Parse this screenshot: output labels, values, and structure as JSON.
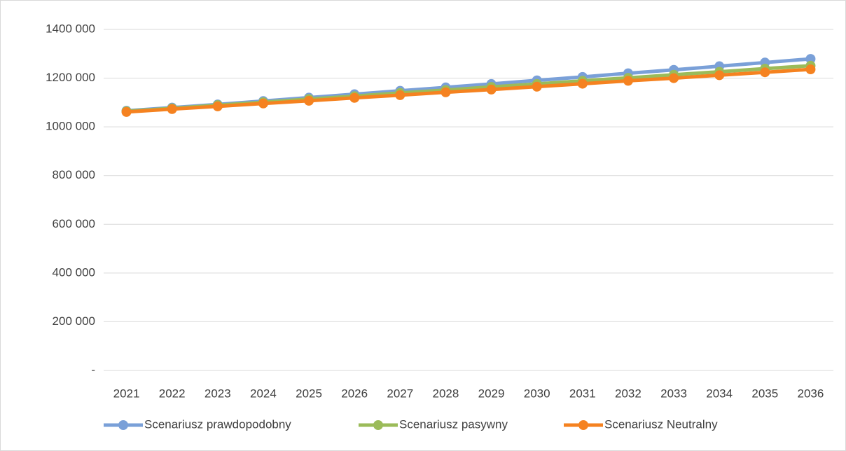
{
  "chart_data": {
    "type": "line",
    "categories": [
      "2021",
      "2022",
      "2023",
      "2024",
      "2025",
      "2026",
      "2027",
      "2028",
      "2029",
      "2030",
      "2031",
      "2032",
      "2033",
      "2034",
      "2035",
      "2036"
    ],
    "series": [
      {
        "name": "Scenariusz prawdopodobny",
        "color": "#7aa0d8",
        "values": [
          1066000,
          1079000,
          1092000,
          1106000,
          1120000,
          1134000,
          1148000,
          1162000,
          1176000,
          1191000,
          1205000,
          1220000,
          1234000,
          1249000,
          1264000,
          1279000
        ]
      },
      {
        "name": "Scenariusz pasywny",
        "color": "#9bbb59",
        "values": [
          1064000,
          1076000,
          1089000,
          1101000,
          1114000,
          1126000,
          1139000,
          1151000,
          1164000,
          1176000,
          1189000,
          1201000,
          1214000,
          1226000,
          1239000,
          1251000
        ]
      },
      {
        "name": "Scenariusz Neutralny",
        "color": "#f58220",
        "values": [
          1061000,
          1073000,
          1084000,
          1096000,
          1107000,
          1119000,
          1130000,
          1142000,
          1153000,
          1165000,
          1177000,
          1189000,
          1200000,
          1212000,
          1224000,
          1236000
        ]
      }
    ],
    "ylim": [
      0,
      1400000
    ],
    "yticks": [
      {
        "value": 0,
        "label": "-"
      },
      {
        "value": 200000,
        "label": "200 000"
      },
      {
        "value": 400000,
        "label": "400 000"
      },
      {
        "value": 600000,
        "label": "600 000"
      },
      {
        "value": 800000,
        "label": "800 000"
      },
      {
        "value": 1000000,
        "label": "1000 000"
      },
      {
        "value": 1200000,
        "label": "1200 000"
      },
      {
        "value": 1400000,
        "label": "1400 000"
      }
    ],
    "grid": true,
    "legend": "bottom"
  }
}
